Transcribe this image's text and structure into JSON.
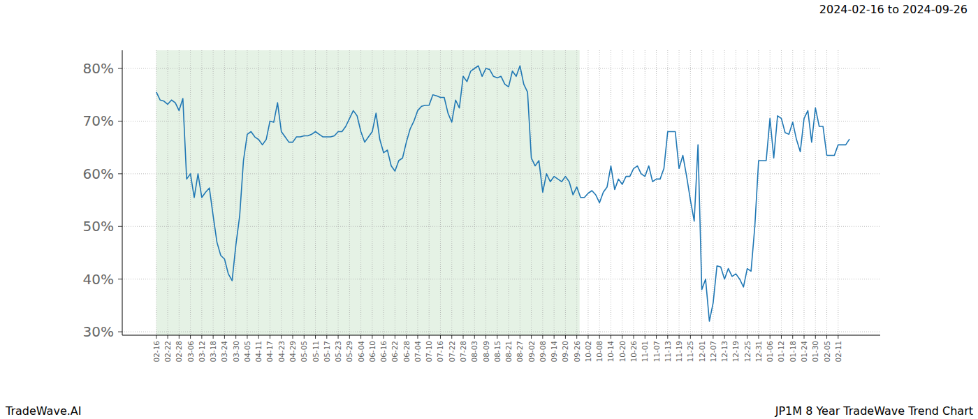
{
  "chart_data": {
    "type": "line",
    "title": "JP1M 8 Year TradeWave Trend Chart",
    "subtitle": "2024-02-16 to 2024-09-26",
    "source": "TradeWave.AI",
    "color": "#1f77b4",
    "grid": true,
    "shaded": {
      "start": "02-16",
      "end": "09-26"
    },
    "categories": [
      "02-16",
      null,
      null,
      "02-22",
      null,
      null,
      "02-28",
      null,
      null,
      "03-06",
      null,
      null,
      "03-12",
      null,
      null,
      "03-18",
      null,
      null,
      "03-24",
      null,
      null,
      "03-30",
      null,
      null,
      "04-05",
      null,
      null,
      "04-11",
      null,
      null,
      "04-17",
      null,
      null,
      "04-23",
      null,
      null,
      "04-29",
      null,
      null,
      "05-05",
      null,
      null,
      "05-11",
      null,
      null,
      "05-17",
      null,
      null,
      "05-23",
      null,
      null,
      "05-29",
      null,
      null,
      "06-04",
      null,
      null,
      "06-10",
      null,
      null,
      "06-16",
      null,
      null,
      "06-22",
      null,
      null,
      "06-28",
      null,
      null,
      "07-04",
      null,
      null,
      "07-10",
      null,
      null,
      "07-16",
      null,
      null,
      "07-22",
      null,
      null,
      "07-28",
      null,
      null,
      "08-03",
      null,
      null,
      "08-09",
      null,
      null,
      "08-15",
      null,
      null,
      "08-21",
      null,
      null,
      "08-27",
      null,
      null,
      "09-02",
      null,
      null,
      "09-08",
      null,
      null,
      "09-14",
      null,
      null,
      "09-20",
      null,
      null,
      "09-26",
      null,
      null,
      "10-02",
      null,
      null,
      "10-08",
      null,
      null,
      "10-14",
      null,
      null,
      "10-20",
      null,
      null,
      "10-26",
      null,
      null,
      "11-01",
      null,
      null,
      "11-07",
      null,
      null,
      "11-13",
      null,
      null,
      "11-19",
      null,
      null,
      "11-25",
      null,
      null,
      "12-01",
      null,
      null,
      "12-07",
      null,
      null,
      "12-13",
      null,
      null,
      "12-19",
      null,
      null,
      "12-25",
      null,
      null,
      "12-31",
      null,
      null,
      "01-06",
      null,
      null,
      "01-12",
      null,
      null,
      "01-18",
      null,
      null,
      "01-24",
      null,
      null,
      "01-30",
      null,
      null,
      "02-05",
      null,
      null,
      "02-11",
      null,
      null,
      null
    ],
    "values": [
      75.5,
      74,
      73.8,
      73.2,
      74,
      73.5,
      72,
      74.3,
      59,
      60,
      55.5,
      60,
      55.5,
      56.5,
      57.3,
      52,
      47,
      44.5,
      43.8,
      41,
      39.7,
      46.5,
      52,
      62.5,
      67.5,
      68,
      67,
      66.5,
      65.5,
      66.5,
      70,
      69.8,
      73.5,
      68,
      67,
      66,
      66,
      67,
      67,
      67.2,
      67.2,
      67.5,
      68,
      67.5,
      67,
      67,
      67,
      67.2,
      68,
      68,
      69,
      70.5,
      72,
      71,
      68,
      66,
      67,
      68,
      71.5,
      66.5,
      64,
      64.5,
      61.5,
      60.5,
      62.5,
      63,
      66,
      68.5,
      70,
      72,
      72.8,
      73,
      73,
      75,
      74.8,
      74.5,
      74.5,
      71.5,
      69.8,
      74,
      72.5,
      78.5,
      77.5,
      79.5,
      80,
      80.5,
      78.5,
      80,
      79.8,
      78.5,
      78.2,
      78.5,
      77,
      76.5,
      79.5,
      78.5,
      80.5,
      77,
      75.5,
      63,
      61.5,
      62.5,
      56.5,
      60,
      58.5,
      59.5,
      59,
      58.5,
      59.5,
      58.5,
      56,
      57.5,
      55.5,
      55.5,
      56.3,
      56.8,
      56,
      54.5,
      56.5,
      57.5,
      61.5,
      57,
      59,
      58,
      59.5,
      59.5,
      61,
      61.5,
      60,
      59.5,
      61.5,
      58.5,
      59,
      59,
      61,
      68,
      68,
      68,
      61,
      63.5,
      59.5,
      55,
      51,
      65.5,
      38,
      40,
      32,
      35.5,
      42.5,
      42.3,
      40,
      42,
      40.5,
      41,
      40,
      38.5,
      42,
      41.5,
      50,
      62.5,
      62.5,
      62.5,
      70.5,
      63,
      71,
      70.5,
      67.8,
      67.5,
      69.8,
      66.5,
      64.2,
      70.5,
      72,
      66,
      72.5,
      69,
      69,
      63.5,
      63.5,
      63.5,
      65.5,
      65.5,
      65.5,
      66.6
    ],
    "xlim": [
      -9,
      191.1
    ],
    "ylim": [
      29.35,
      83.45
    ],
    "yticks": [
      {
        "value": 30,
        "label": "30%"
      },
      {
        "value": 40,
        "label": "40%"
      },
      {
        "value": 50,
        "label": "50%"
      },
      {
        "value": 60,
        "label": "60%"
      },
      {
        "value": 70,
        "label": "70%"
      },
      {
        "value": 80,
        "label": "80%"
      }
    ]
  }
}
